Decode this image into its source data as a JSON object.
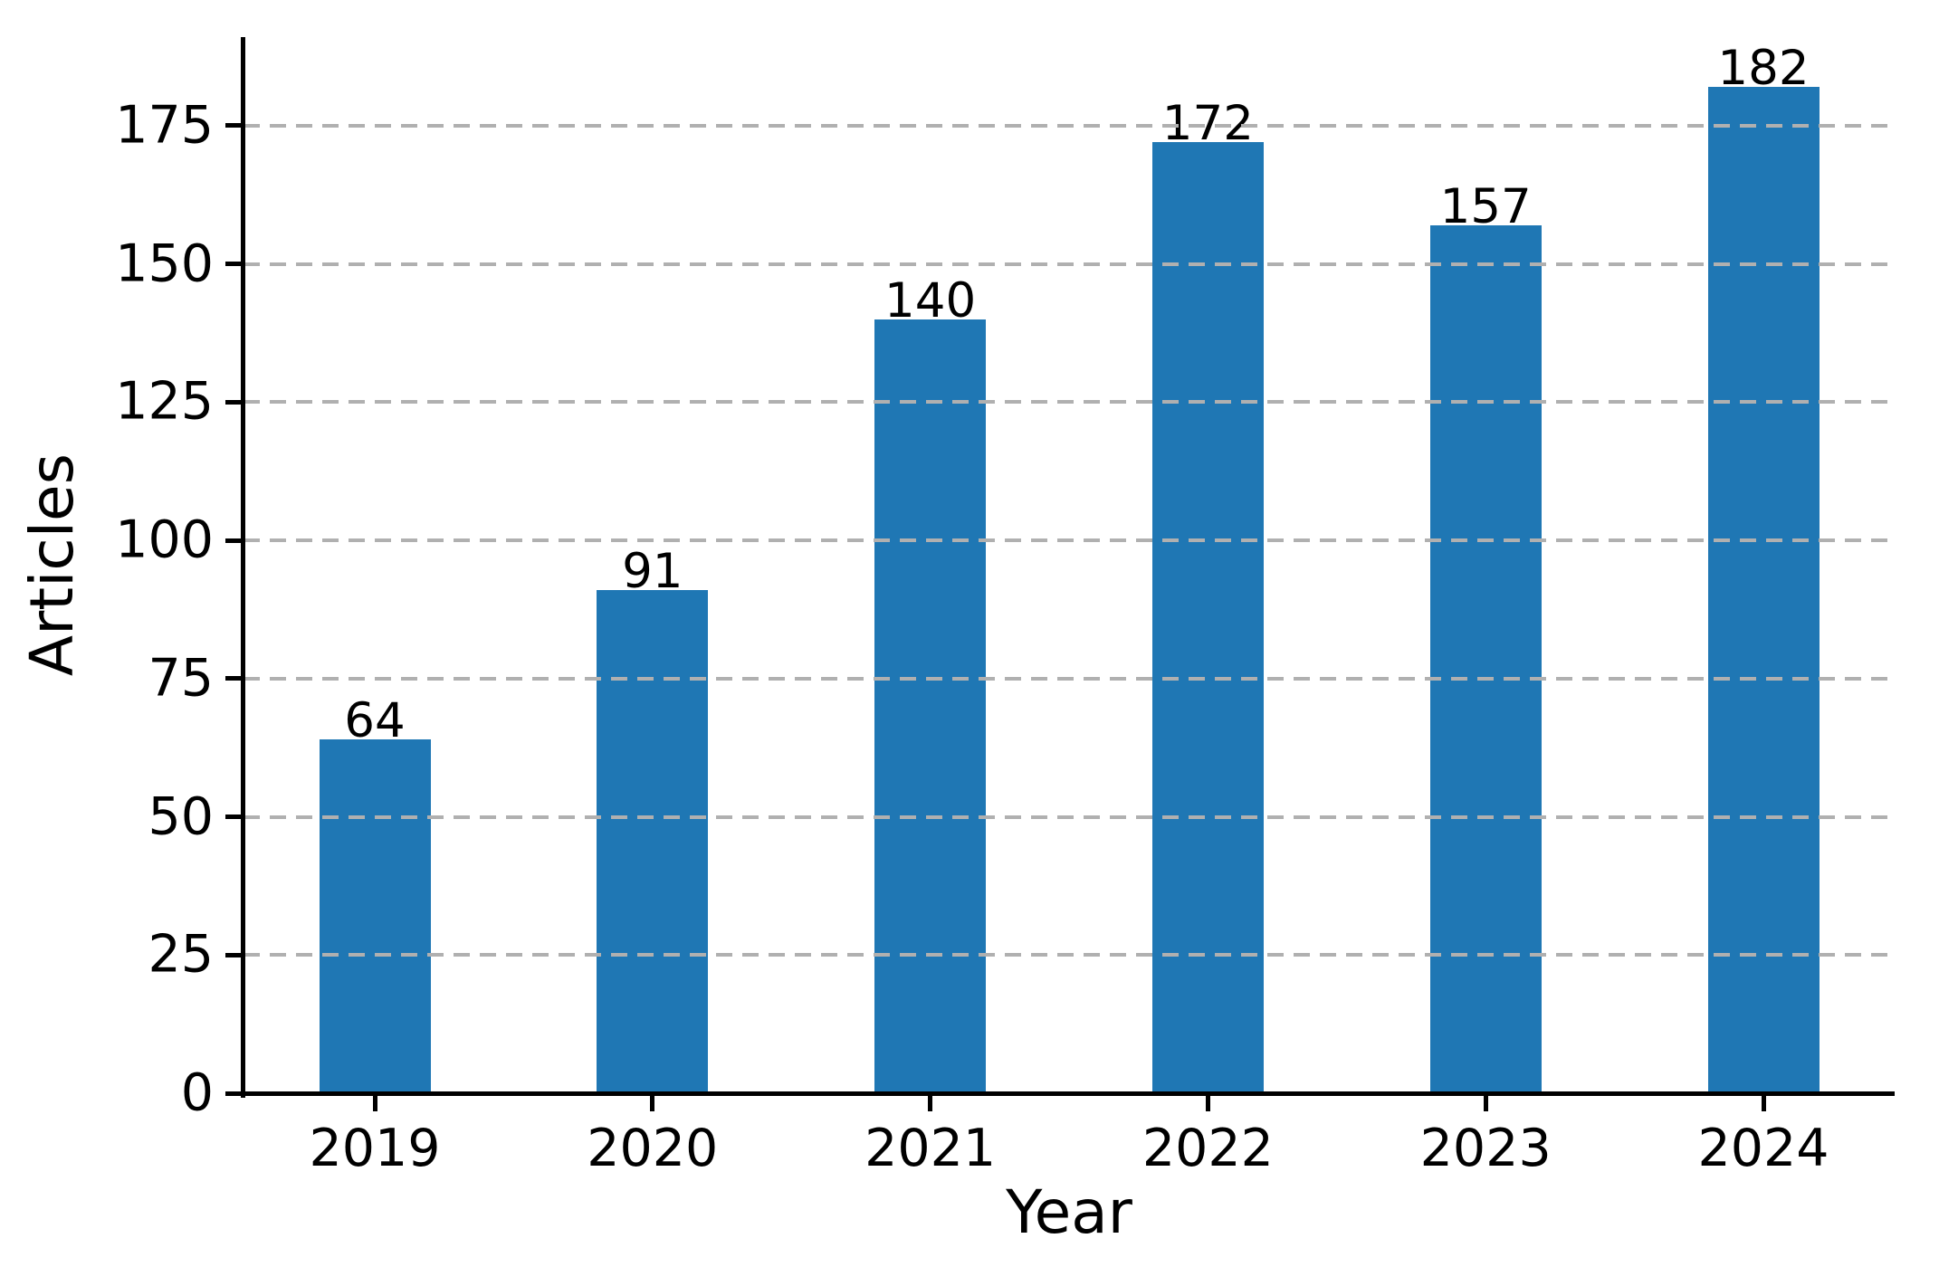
{
  "chart_data": {
    "type": "bar",
    "title": "",
    "xlabel": "Year",
    "ylabel": "Articles",
    "categories": [
      "2019",
      "2020",
      "2021",
      "2022",
      "2023",
      "2024"
    ],
    "values": [
      64,
      91,
      140,
      172,
      157,
      182
    ],
    "bar_value_labels": [
      "64",
      "91",
      "140",
      "172",
      "157",
      "182"
    ],
    "yticks": [
      0,
      25,
      50,
      75,
      100,
      125,
      150,
      175
    ],
    "ytick_labels": [
      "0",
      "25",
      "50",
      "75",
      "100",
      "125",
      "150",
      "175"
    ],
    "ylim": [
      0,
      191
    ],
    "grid": "horizontal-dashed",
    "grid_over_bars": true,
    "legend": "none",
    "colors": {
      "bar": "#1f77b4",
      "grid": "#b0b0b0",
      "text": "#000000",
      "spine": "#000000",
      "background": "#ffffff"
    }
  }
}
